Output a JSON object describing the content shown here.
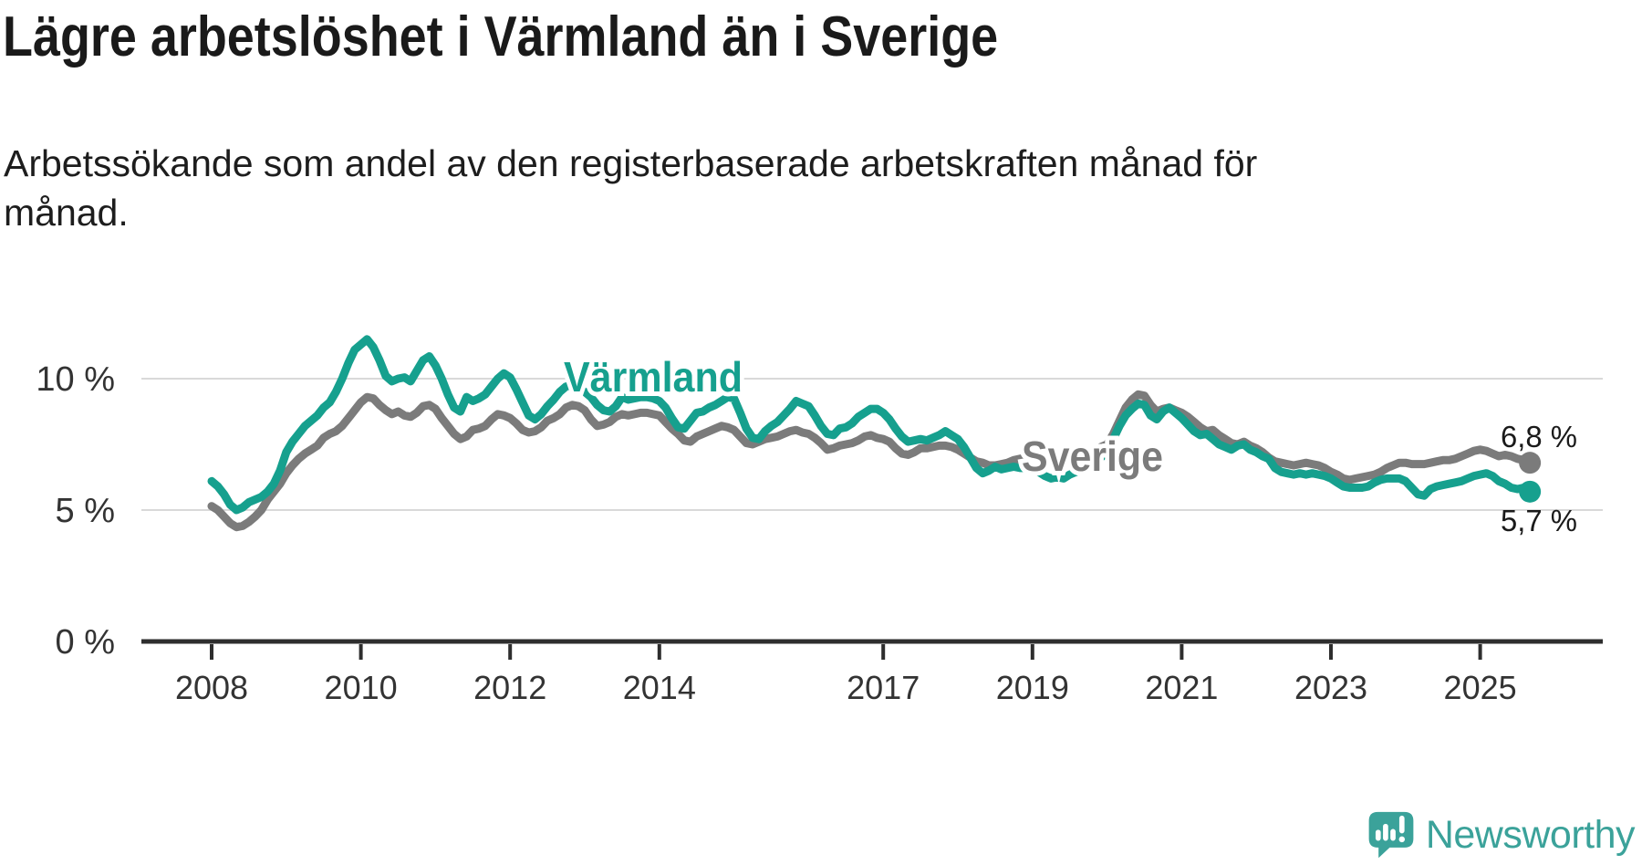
{
  "header": {
    "title": "Lägre arbetslöshet i Värmland än i Sverige",
    "subtitle_line1": "Arbetssökande som andel av den registerbaserade arbetskraften månad för",
    "subtitle_line2": "månad."
  },
  "chart_data": {
    "type": "line",
    "title": "Lägre arbetslöshet i Värmland än i Sverige",
    "xlabel": "",
    "ylabel": "Arbetssökande som andel av den registerbaserade arbetskraften",
    "x_start_year": 2008,
    "x_resolution": "monthly",
    "x_end": "2025-09",
    "ylim": [
      0,
      12.9
    ],
    "grid": true,
    "legend_position": "inline-labels",
    "yticks": [
      {
        "label": "10 %",
        "value": 10
      },
      {
        "label": "5 %",
        "value": 5
      },
      {
        "label": "0 %",
        "value": 0
      }
    ],
    "xticks": [
      {
        "label": "2008",
        "value": 2008
      },
      {
        "label": "2010",
        "value": 2010
      },
      {
        "label": "2012",
        "value": 2012
      },
      {
        "label": "2014",
        "value": 2014
      },
      {
        "label": "2017",
        "value": 2017
      },
      {
        "label": "2019",
        "value": 2019
      },
      {
        "label": "2021",
        "value": 2021
      },
      {
        "label": "2023",
        "value": 2023
      },
      {
        "label": "2025",
        "value": 2025
      }
    ],
    "series": [
      {
        "name": "Sverige",
        "color": "#7b7b7b",
        "end_label": "6,8 %",
        "end_value": 6.8,
        "values": [
          5.15,
          5.0,
          4.75,
          4.5,
          4.35,
          4.4,
          4.55,
          4.75,
          5.0,
          5.4,
          5.7,
          6.0,
          6.4,
          6.7,
          6.95,
          7.15,
          7.3,
          7.45,
          7.75,
          7.9,
          8.0,
          8.2,
          8.5,
          8.8,
          9.1,
          9.3,
          9.25,
          9.0,
          8.8,
          8.65,
          8.75,
          8.6,
          8.55,
          8.7,
          8.95,
          9.0,
          8.85,
          8.5,
          8.2,
          7.9,
          7.7,
          7.8,
          8.05,
          8.1,
          8.2,
          8.45,
          8.65,
          8.6,
          8.5,
          8.3,
          8.05,
          7.95,
          8.0,
          8.15,
          8.4,
          8.5,
          8.65,
          8.9,
          9.0,
          8.95,
          8.8,
          8.45,
          8.2,
          8.25,
          8.35,
          8.55,
          8.65,
          8.6,
          8.65,
          8.7,
          8.7,
          8.65,
          8.6,
          8.35,
          8.1,
          7.9,
          7.65,
          7.6,
          7.8,
          7.9,
          8.0,
          8.1,
          8.2,
          8.15,
          8.05,
          7.8,
          7.55,
          7.5,
          7.6,
          7.7,
          7.75,
          7.8,
          7.9,
          8.0,
          8.05,
          7.95,
          7.9,
          7.75,
          7.55,
          7.3,
          7.35,
          7.45,
          7.5,
          7.55,
          7.65,
          7.8,
          7.85,
          7.75,
          7.7,
          7.6,
          7.35,
          7.15,
          7.1,
          7.2,
          7.35,
          7.35,
          7.4,
          7.45,
          7.45,
          7.4,
          7.3,
          7.15,
          7.0,
          6.85,
          6.8,
          6.7,
          6.7,
          6.75,
          6.8,
          6.9,
          6.95,
          7.0,
          7.0,
          6.95,
          6.9,
          6.9,
          6.95,
          7.0,
          7.0,
          7.05,
          7.1,
          7.15,
          7.25,
          7.4,
          7.5,
          7.9,
          8.4,
          8.9,
          9.2,
          9.4,
          9.35,
          9.0,
          8.75,
          8.85,
          8.9,
          8.8,
          8.7,
          8.55,
          8.35,
          8.15,
          8.0,
          8.05,
          7.85,
          7.7,
          7.55,
          7.5,
          7.6,
          7.45,
          7.35,
          7.2,
          7.0,
          6.85,
          6.8,
          6.75,
          6.7,
          6.75,
          6.8,
          6.75,
          6.7,
          6.6,
          6.45,
          6.35,
          6.2,
          6.15,
          6.2,
          6.25,
          6.3,
          6.35,
          6.45,
          6.6,
          6.7,
          6.8,
          6.8,
          6.75,
          6.75,
          6.75,
          6.8,
          6.85,
          6.9,
          6.9,
          6.95,
          7.05,
          7.15,
          7.25,
          7.3,
          7.25,
          7.15,
          7.05,
          7.1,
          7.05,
          6.95,
          6.9,
          6.8
        ]
      },
      {
        "name": "Värmland",
        "color": "#16a08e",
        "end_label": "5,7 %",
        "end_value": 5.7,
        "values": [
          6.1,
          5.9,
          5.6,
          5.2,
          5.0,
          5.1,
          5.3,
          5.4,
          5.5,
          5.7,
          6.0,
          6.5,
          7.2,
          7.6,
          7.9,
          8.2,
          8.4,
          8.6,
          8.9,
          9.1,
          9.5,
          10.0,
          10.6,
          11.1,
          11.3,
          11.5,
          11.2,
          10.7,
          10.1,
          9.9,
          10.0,
          10.05,
          9.9,
          10.3,
          10.7,
          10.85,
          10.5,
          10.0,
          9.4,
          8.9,
          8.75,
          9.3,
          9.15,
          9.25,
          9.4,
          9.7,
          10.0,
          10.2,
          10.05,
          9.6,
          9.1,
          8.6,
          8.45,
          8.65,
          8.95,
          9.2,
          9.5,
          9.7,
          9.75,
          9.65,
          9.5,
          9.3,
          9.0,
          8.8,
          8.75,
          8.95,
          9.3,
          9.2,
          9.25,
          9.3,
          9.3,
          9.25,
          9.15,
          8.9,
          8.5,
          8.15,
          8.1,
          8.4,
          8.7,
          8.75,
          8.9,
          9.0,
          9.15,
          9.3,
          9.25,
          8.7,
          8.1,
          7.75,
          7.7,
          8.0,
          8.2,
          8.35,
          8.6,
          8.85,
          9.15,
          9.05,
          8.95,
          8.6,
          8.2,
          7.9,
          7.85,
          8.1,
          8.15,
          8.3,
          8.55,
          8.7,
          8.85,
          8.85,
          8.7,
          8.45,
          8.1,
          7.8,
          7.6,
          7.65,
          7.7,
          7.65,
          7.75,
          7.85,
          8.0,
          7.85,
          7.7,
          7.4,
          7.0,
          6.6,
          6.4,
          6.5,
          6.65,
          6.55,
          6.6,
          6.65,
          6.6,
          6.6,
          6.55,
          6.45,
          6.3,
          6.2,
          6.25,
          6.2,
          6.35,
          6.45,
          6.55,
          6.7,
          6.85,
          7.0,
          7.2,
          7.7,
          8.2,
          8.6,
          8.85,
          9.05,
          9.0,
          8.6,
          8.45,
          8.75,
          8.9,
          8.7,
          8.5,
          8.25,
          8.0,
          7.85,
          7.9,
          7.7,
          7.5,
          7.4,
          7.3,
          7.45,
          7.5,
          7.3,
          7.2,
          7.05,
          6.95,
          6.6,
          6.45,
          6.4,
          6.35,
          6.4,
          6.35,
          6.4,
          6.35,
          6.3,
          6.2,
          6.05,
          5.9,
          5.85,
          5.85,
          5.85,
          5.9,
          6.05,
          6.15,
          6.2,
          6.2,
          6.2,
          6.1,
          5.85,
          5.6,
          5.55,
          5.8,
          5.9,
          5.95,
          6.0,
          6.05,
          6.1,
          6.2,
          6.3,
          6.35,
          6.4,
          6.3,
          6.1,
          6.0,
          5.85,
          5.8,
          5.85,
          5.7
        ]
      }
    ]
  },
  "colors": {
    "varmland": "#16a08e",
    "sverige": "#7b7b7b",
    "gridline": "#d9d9d9",
    "axis": "#2e2e2e",
    "tick_label": "#333333",
    "end_label": "#1a1a1a",
    "logo_teal": "#3ba29a"
  },
  "logo": {
    "text": "Newsworthy",
    "icon": "newsworthy-speech-bubble-barchart-icon"
  }
}
